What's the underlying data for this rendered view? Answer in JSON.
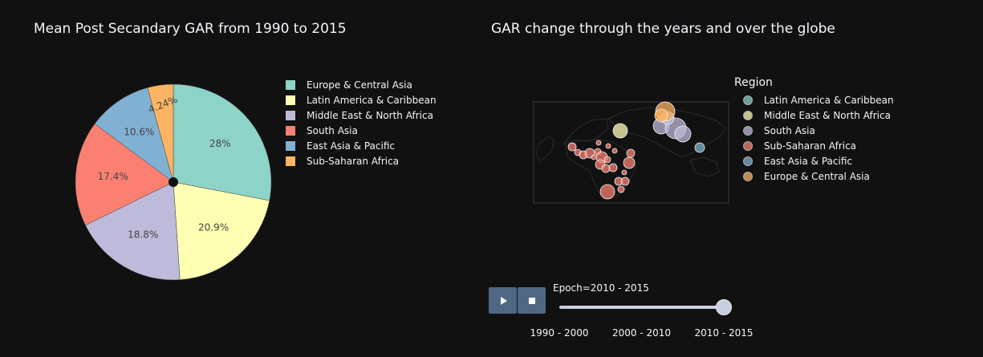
{
  "chart_data": [
    {
      "type": "pie",
      "title": "Mean Post Secandary GAR from 1990 to 2015",
      "labels": [
        "Europe & Central Asia",
        "Latin America & Caribbean",
        "Middle East & North Africa",
        "South Asia",
        "East Asia & Pacific",
        "Sub-Saharan Africa"
      ],
      "values": [
        28,
        20.9,
        18.8,
        17.4,
        10.6,
        4.24
      ],
      "value_labels": [
        "28%",
        "20.9%",
        "18.8%",
        "17.4%",
        "10.6%",
        "4.24%"
      ],
      "colors": [
        "#8dd3c7",
        "#ffffb3",
        "#bebada",
        "#fb8072",
        "#80b1d3",
        "#fdb462"
      ],
      "legend_position": "right"
    },
    {
      "type": "scatter",
      "subtype": "geo-bubble-map",
      "title": "GAR change through the years and over the globe",
      "legend_title": "Region",
      "legend_position": "right",
      "series": [
        {
          "name": "Latin America & Caribbean",
          "color": "#8dd3c7"
        },
        {
          "name": "Middle East & North Africa",
          "color": "#ffffb3"
        },
        {
          "name": "South Asia",
          "color": "#bebada"
        },
        {
          "name": "Sub-Saharan Africa",
          "color": "#fb8072"
        },
        {
          "name": "East Asia & Pacific",
          "color": "#80b1d3"
        },
        {
          "name": "Europe & Central Asia",
          "color": "#fdb462"
        }
      ],
      "animation": {
        "current_label": "Epoch=2010 - 2015",
        "frames": [
          "1990 - 2000",
          "2000 - 2010",
          "2010 - 2015"
        ],
        "current_index": 2
      }
    }
  ],
  "controls": {
    "play_icon": "play-icon",
    "stop_icon": "stop-icon"
  }
}
